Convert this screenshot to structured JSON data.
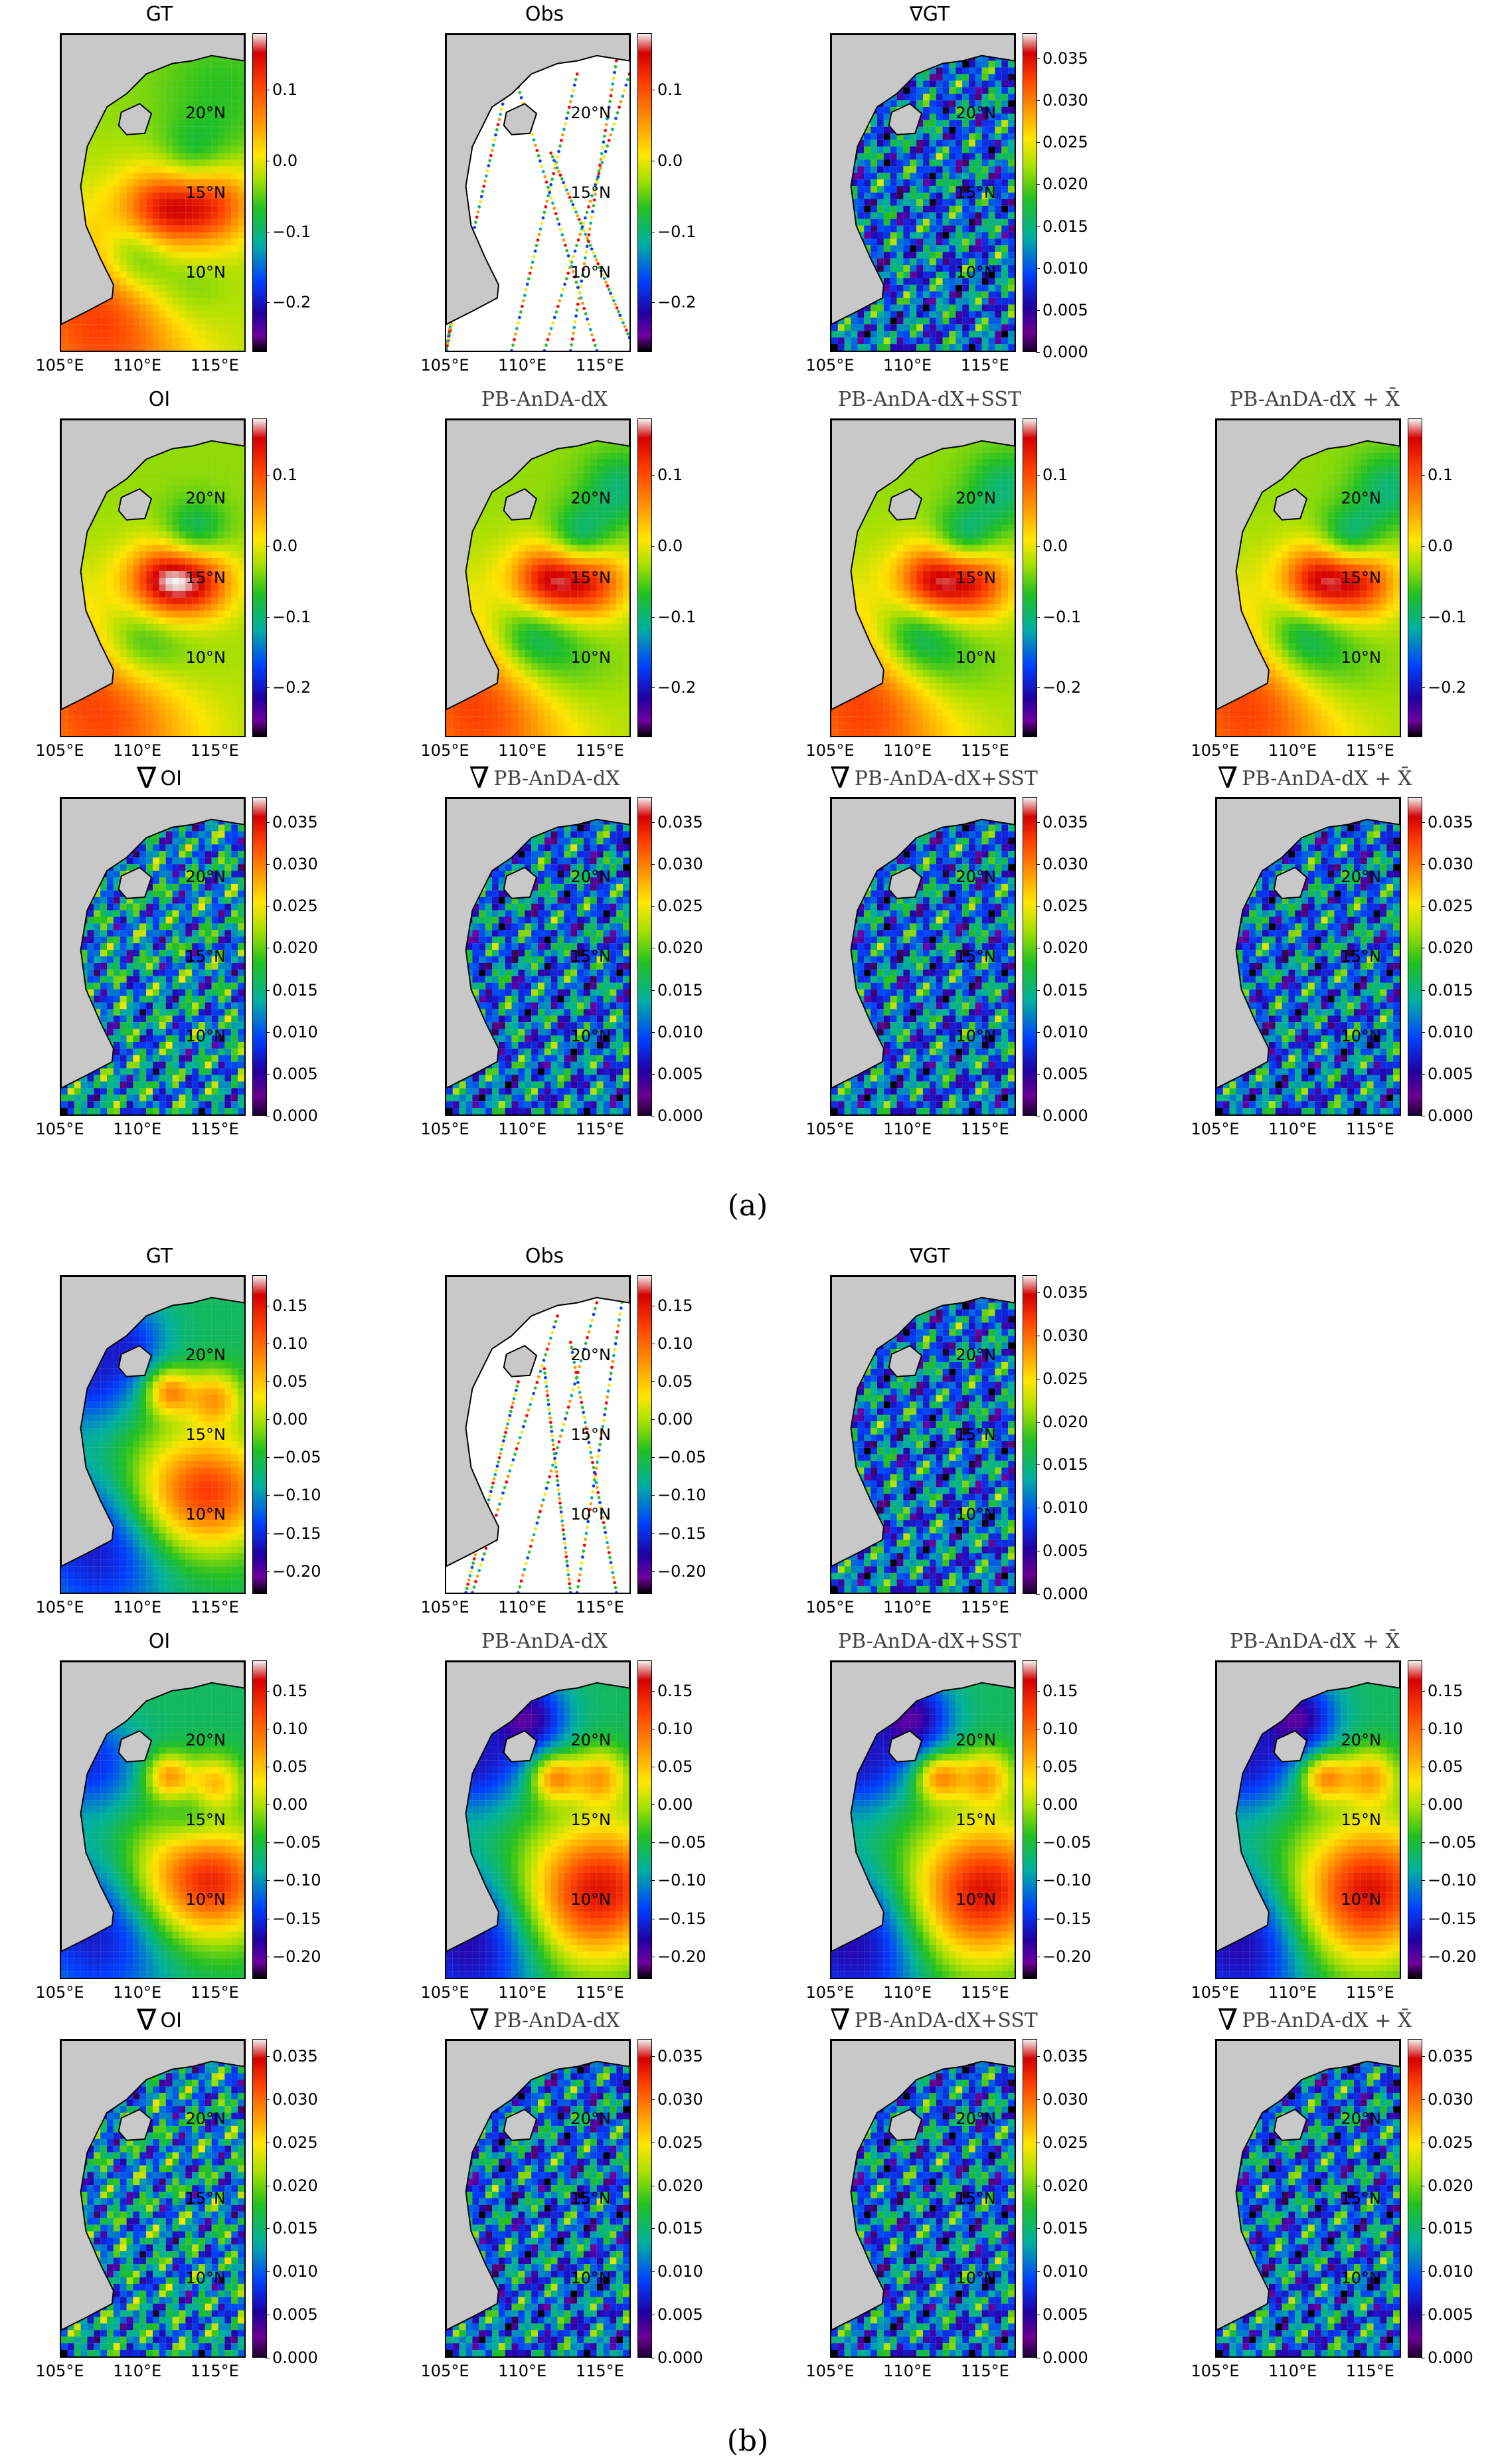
{
  "figures": [
    {
      "label": "(a)",
      "panels": [
        {
          "title": "GT",
          "kind": "div",
          "row": 0,
          "col": 0,
          "scale": "a_ssh",
          "pattern": "gt"
        },
        {
          "title": "Obs",
          "kind": "obs",
          "row": 0,
          "col": 1,
          "scale": "a_ssh",
          "pattern": "obs"
        },
        {
          "title": "∇GT",
          "kind": "grad",
          "row": 0,
          "col": 2,
          "scale": "a_grad",
          "pattern": "ggt"
        },
        {
          "title": "OI",
          "kind": "div",
          "row": 1,
          "col": 0,
          "scale": "a_ssh",
          "pattern": "oi"
        },
        {
          "title": "PB-AnDA-dX",
          "kind": "div",
          "row": 1,
          "col": 1,
          "scale": "a_ssh",
          "pattern": "pb",
          "serif": true
        },
        {
          "title": "PB-AnDA-dX+SST",
          "kind": "div",
          "row": 1,
          "col": 2,
          "scale": "a_ssh",
          "pattern": "pb",
          "serif": true
        },
        {
          "title": "PB-AnDA-dX + X̄",
          "kind": "div",
          "row": 1,
          "col": 3,
          "scale": "a_ssh",
          "pattern": "pb",
          "serif": true
        },
        {
          "title": "OI",
          "kind": "grad",
          "row": 2,
          "col": 0,
          "scale": "a_grad",
          "pattern": "goi",
          "nabla": true
        },
        {
          "title": "PB-AnDA-dX",
          "kind": "grad",
          "row": 2,
          "col": 1,
          "scale": "a_grad",
          "pattern": "gpb",
          "nabla": true,
          "serif": true
        },
        {
          "title": "PB-AnDA-dX+SST",
          "kind": "grad",
          "row": 2,
          "col": 2,
          "scale": "a_grad",
          "pattern": "gpb",
          "nabla": true,
          "serif": true
        },
        {
          "title": "PB-AnDA-dX + X̄",
          "kind": "grad",
          "row": 2,
          "col": 3,
          "scale": "a_grad",
          "pattern": "gpb",
          "nabla": true,
          "serif": true
        }
      ]
    },
    {
      "label": "(b)",
      "panels": [
        {
          "title": "GT",
          "kind": "div",
          "row": 0,
          "col": 0,
          "scale": "b_ssh",
          "pattern": "bgt"
        },
        {
          "title": "Obs",
          "kind": "obs",
          "row": 0,
          "col": 1,
          "scale": "b_ssh",
          "pattern": "obsb"
        },
        {
          "title": "∇GT",
          "kind": "grad",
          "row": 0,
          "col": 2,
          "scale": "b_grad",
          "pattern": "ggt"
        },
        {
          "title": "OI",
          "kind": "div",
          "row": 1,
          "col": 0,
          "scale": "b_ssh",
          "pattern": "boi"
        },
        {
          "title": "PB-AnDA-dX",
          "kind": "div",
          "row": 1,
          "col": 1,
          "scale": "b_ssh",
          "pattern": "bpb",
          "serif": true
        },
        {
          "title": "PB-AnDA-dX+SST",
          "kind": "div",
          "row": 1,
          "col": 2,
          "scale": "b_ssh",
          "pattern": "bpb",
          "serif": true
        },
        {
          "title": "PB-AnDA-dX + X̄",
          "kind": "div",
          "row": 1,
          "col": 3,
          "scale": "b_ssh",
          "pattern": "bpb",
          "serif": true
        },
        {
          "title": "OI",
          "kind": "grad",
          "row": 2,
          "col": 0,
          "scale": "b_grad",
          "pattern": "goi",
          "nabla": true
        },
        {
          "title": "PB-AnDA-dX",
          "kind": "grad",
          "row": 2,
          "col": 1,
          "scale": "b_grad",
          "pattern": "gpb",
          "nabla": true,
          "serif": true
        },
        {
          "title": "PB-AnDA-dX+SST",
          "kind": "grad",
          "row": 2,
          "col": 2,
          "scale": "b_grad",
          "pattern": "gpb",
          "nabla": true,
          "serif": true
        },
        {
          "title": "PB-AnDA-dX + X̄",
          "kind": "grad",
          "row": 2,
          "col": 3,
          "scale": "b_grad",
          "pattern": "gpb",
          "nabla": true,
          "serif": true
        }
      ]
    }
  ],
  "scales": {
    "a_ssh": {
      "min": -0.27,
      "max": 0.18,
      "ticks": [
        "0.1",
        "0.0",
        "−0.1",
        "−0.2"
      ],
      "tick_values": [
        0.1,
        0.0,
        -0.1,
        -0.2
      ]
    },
    "a_grad": {
      "min": 0.0,
      "max": 0.038,
      "ticks": [
        "0.035",
        "0.030",
        "0.025",
        "0.020",
        "0.015",
        "0.010",
        "0.005",
        "0.000"
      ],
      "tick_values": [
        0.035,
        0.03,
        0.025,
        0.02,
        0.015,
        0.01,
        0.005,
        0.0
      ]
    },
    "b_ssh": {
      "min": -0.23,
      "max": 0.19,
      "ticks": [
        "0.15",
        "0.10",
        "0.05",
        "0.00",
        "−0.05",
        "−0.10",
        "−0.15",
        "−0.20"
      ],
      "tick_values": [
        0.15,
        0.1,
        0.05,
        0.0,
        -0.05,
        -0.1,
        -0.15,
        -0.2
      ]
    },
    "b_grad": {
      "min": 0.0,
      "max": 0.037,
      "ticks": [
        "0.035",
        "0.030",
        "0.025",
        "0.020",
        "0.015",
        "0.010",
        "0.005",
        "0.000"
      ],
      "tick_values": [
        0.035,
        0.03,
        0.025,
        0.02,
        0.015,
        0.01,
        0.005,
        0.0
      ]
    }
  },
  "map_axes": {
    "lat_labels": [
      "20°N",
      "15°N",
      "10°N"
    ],
    "lat_values": [
      20,
      15,
      10
    ],
    "lon_labels": [
      "105°E",
      "110°E",
      "115°E"
    ],
    "lon_values": [
      105,
      110,
      115
    ],
    "lat_range": [
      5,
      25
    ],
    "lon_range": [
      105,
      117
    ]
  },
  "colors": {
    "land": "#c8c8c8",
    "coast": "#000000"
  }
}
